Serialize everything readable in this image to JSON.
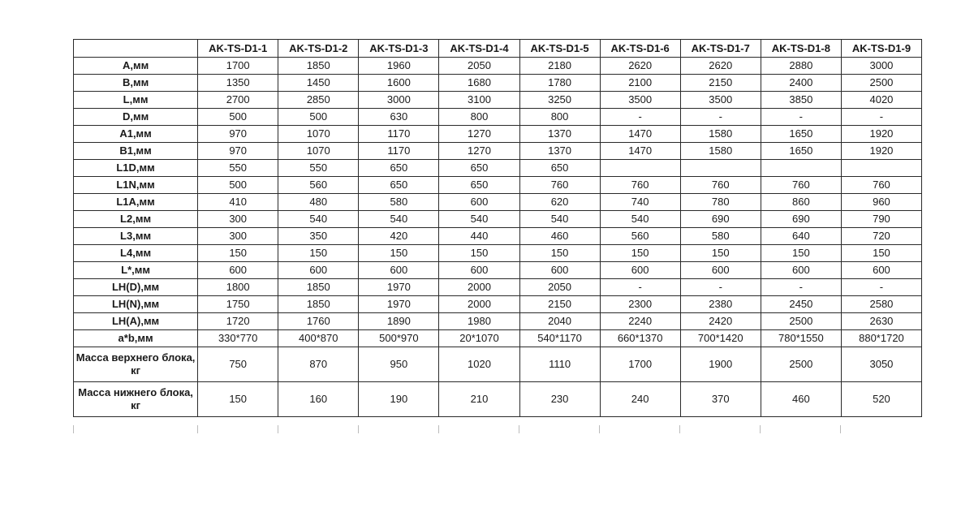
{
  "table": {
    "corner": "",
    "columns": [
      "AK-TS-D1-1",
      "AK-TS-D1-2",
      "AK-TS-D1-3",
      "AK-TS-D1-4",
      "AK-TS-D1-5",
      "AK-TS-D1-6",
      "AK-TS-D1-7",
      "AK-TS-D1-8",
      "AK-TS-D1-9"
    ],
    "rows": [
      {
        "label": "A,мм",
        "values": [
          "1700",
          "1850",
          "1960",
          "2050",
          "2180",
          "2620",
          "2620",
          "2880",
          "3000"
        ]
      },
      {
        "label": "B,мм",
        "values": [
          "1350",
          "1450",
          "1600",
          "1680",
          "1780",
          "2100",
          "2150",
          "2400",
          "2500"
        ]
      },
      {
        "label": "L,мм",
        "values": [
          "2700",
          "2850",
          "3000",
          "3100",
          "3250",
          "3500",
          "3500",
          "3850",
          "4020"
        ]
      },
      {
        "label": "D,мм",
        "values": [
          "500",
          "500",
          "630",
          "800",
          "800",
          "-",
          "-",
          "-",
          "-"
        ]
      },
      {
        "label": "A1,мм",
        "values": [
          "970",
          "1070",
          "1170",
          "1270",
          "1370",
          "1470",
          "1580",
          "1650",
          "1920"
        ]
      },
      {
        "label": "B1,мм",
        "values": [
          "970",
          "1070",
          "1170",
          "1270",
          "1370",
          "1470",
          "1580",
          "1650",
          "1920"
        ]
      },
      {
        "label": "L1D,мм",
        "values": [
          "550",
          "550",
          "650",
          "650",
          "650",
          "",
          "",
          "",
          ""
        ]
      },
      {
        "label": "L1N,мм",
        "values": [
          "500",
          "560",
          "650",
          "650",
          "760",
          "760",
          "760",
          "760",
          "760"
        ]
      },
      {
        "label": "L1A,мм",
        "values": [
          "410",
          "480",
          "580",
          "600",
          "620",
          "740",
          "780",
          "860",
          "960"
        ]
      },
      {
        "label": "L2,мм",
        "values": [
          "300",
          "540",
          "540",
          "540",
          "540",
          "540",
          "690",
          "690",
          "790"
        ]
      },
      {
        "label": "L3,мм",
        "values": [
          "300",
          "350",
          "420",
          "440",
          "460",
          "560",
          "580",
          "640",
          "720"
        ]
      },
      {
        "label": "L4,мм",
        "values": [
          "150",
          "150",
          "150",
          "150",
          "150",
          "150",
          "150",
          "150",
          "150"
        ]
      },
      {
        "label": "L*,мм",
        "values": [
          "600",
          "600",
          "600",
          "600",
          "600",
          "600",
          "600",
          "600",
          "600"
        ]
      },
      {
        "label": "LH(D),мм",
        "values": [
          "1800",
          "1850",
          "1970",
          "2000",
          "2050",
          "-",
          "-",
          "-",
          "-"
        ]
      },
      {
        "label": "LH(N),мм",
        "values": [
          "1750",
          "1850",
          "1970",
          "2000",
          "2150",
          "2300",
          "2380",
          "2450",
          "2580"
        ]
      },
      {
        "label": "LH(A),мм",
        "values": [
          "1720",
          "1760",
          "1890",
          "1980",
          "2040",
          "2240",
          "2420",
          "2500",
          "2630"
        ]
      },
      {
        "label": "a*b,мм",
        "values": [
          "330*770",
          "400*870",
          "500*970",
          "20*1070",
          "540*1170",
          "660*1370",
          "700*1420",
          "780*1550",
          "880*1720"
        ]
      },
      {
        "label": "Масса верхнего блока, кг",
        "values": [
          "750",
          "870",
          "950",
          "1020",
          "1110",
          "1700",
          "1900",
          "2500",
          "3050"
        ],
        "tall": true
      },
      {
        "label": "Масса нижнего блока, кг",
        "values": [
          "150",
          "160",
          "190",
          "210",
          "230",
          "240",
          "370",
          "460",
          "520"
        ],
        "tall": true
      }
    ]
  }
}
